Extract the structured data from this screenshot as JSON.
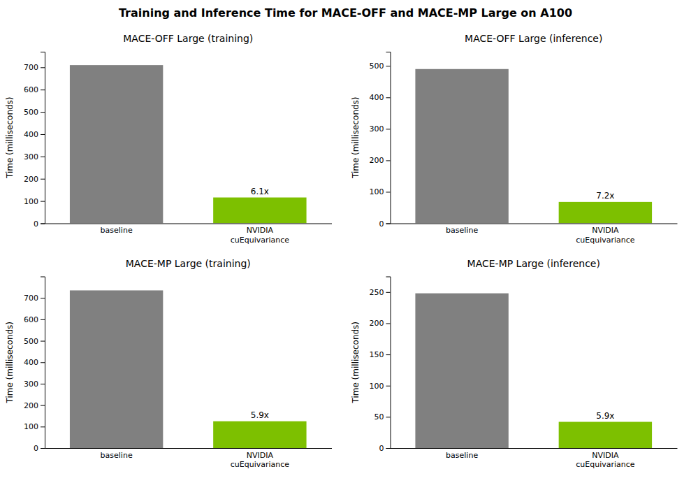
{
  "title": "Training and Inference Time for MACE-OFF and MACE-MP Large on A100",
  "chart_data": [
    {
      "type": "bar",
      "title": "MACE-OFF Large (training)",
      "categories": [
        "baseline",
        "NVIDIA\ncuEquivariance"
      ],
      "values": [
        710,
        116
      ],
      "colors": [
        "#808080",
        "#7dc000"
      ],
      "y_label": "Time (milliseconds)",
      "ylim": [
        0,
        770
      ],
      "yticks": [
        0,
        100,
        200,
        300,
        400,
        500,
        600,
        700
      ],
      "grid": false,
      "annotations": [
        {
          "text": "6.1x",
          "x": "NVIDIA\ncuEquivariance",
          "y": 116
        }
      ]
    },
    {
      "type": "bar",
      "title": "MACE-OFF Large (inference)",
      "categories": [
        "baseline",
        "NVIDIA\ncuEquivariance"
      ],
      "values": [
        490,
        68
      ],
      "colors": [
        "#808080",
        "#7dc000"
      ],
      "y_label": "Time (milliseconds)",
      "ylim": [
        0,
        545
      ],
      "yticks": [
        0,
        100,
        200,
        300,
        400,
        500
      ],
      "grid": false,
      "annotations": [
        {
          "text": "7.2x",
          "x": "NVIDIA\ncuEquivariance",
          "y": 68
        }
      ]
    },
    {
      "type": "bar",
      "title": "MACE-MP Large (training)",
      "categories": [
        "baseline",
        "NVIDIA\ncuEquivariance"
      ],
      "values": [
        735,
        125
      ],
      "colors": [
        "#808080",
        "#7dc000"
      ],
      "y_label": "Time (milliseconds)",
      "ylim": [
        0,
        800
      ],
      "yticks": [
        0,
        100,
        200,
        300,
        400,
        500,
        600,
        700
      ],
      "grid": false,
      "annotations": [
        {
          "text": "5.9x",
          "x": "NVIDIA\ncuEquivariance",
          "y": 125
        }
      ]
    },
    {
      "type": "bar",
      "title": "MACE-MP Large (inference)",
      "categories": [
        "baseline",
        "NVIDIA\ncuEquivariance"
      ],
      "values": [
        248,
        42
      ],
      "colors": [
        "#808080",
        "#7dc000"
      ],
      "y_label": "Time (milliseconds)",
      "ylim": [
        0,
        275
      ],
      "yticks": [
        0,
        50,
        100,
        150,
        200,
        250
      ],
      "grid": false,
      "annotations": [
        {
          "text": "5.9x",
          "x": "NVIDIA\ncuEquivariance",
          "y": 42
        }
      ]
    }
  ]
}
